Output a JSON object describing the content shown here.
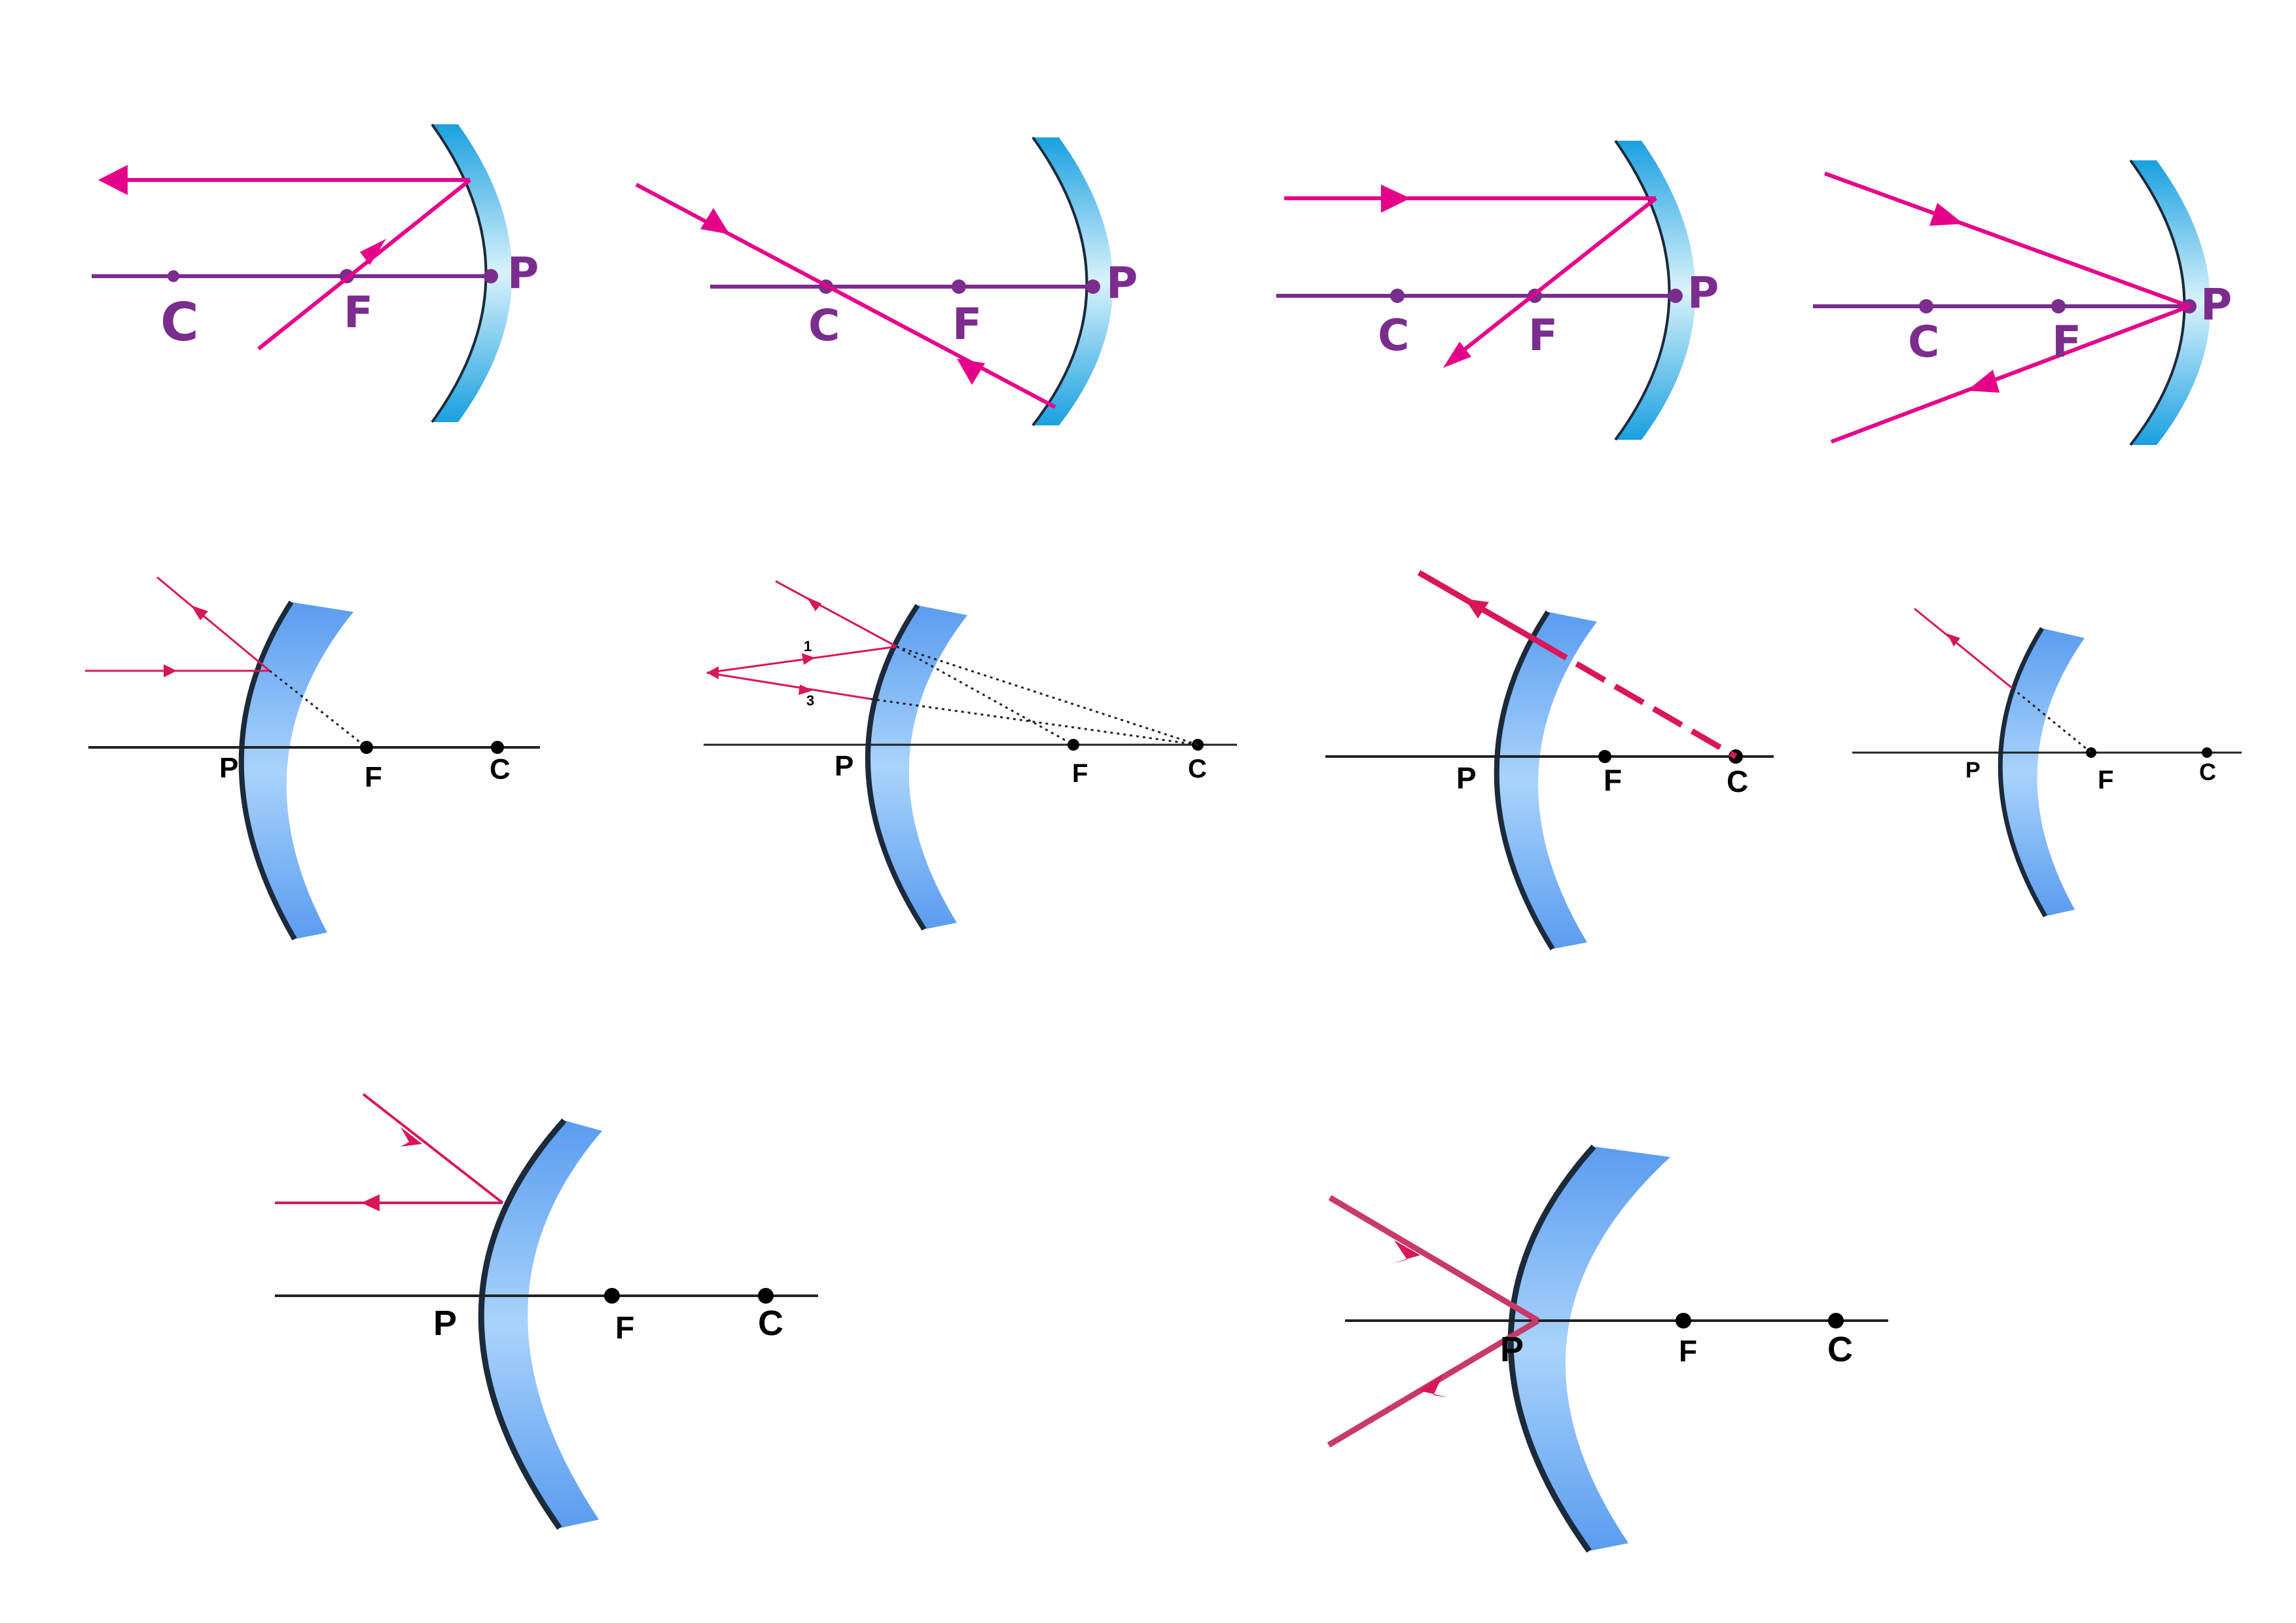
{
  "colors": {
    "concave_ray": "#e5008a",
    "concave_axis": "#7b2d8e",
    "convex_ray": "#d8175a",
    "convex_axis": "#222222",
    "mirror_concave": "#1aa9e6",
    "mirror_convex": "#5ea2f2",
    "mirror_outline": "#1c2a3a"
  },
  "labels": {
    "C": "C",
    "F": "F",
    "P": "P",
    "one": "1",
    "three": "3"
  }
}
